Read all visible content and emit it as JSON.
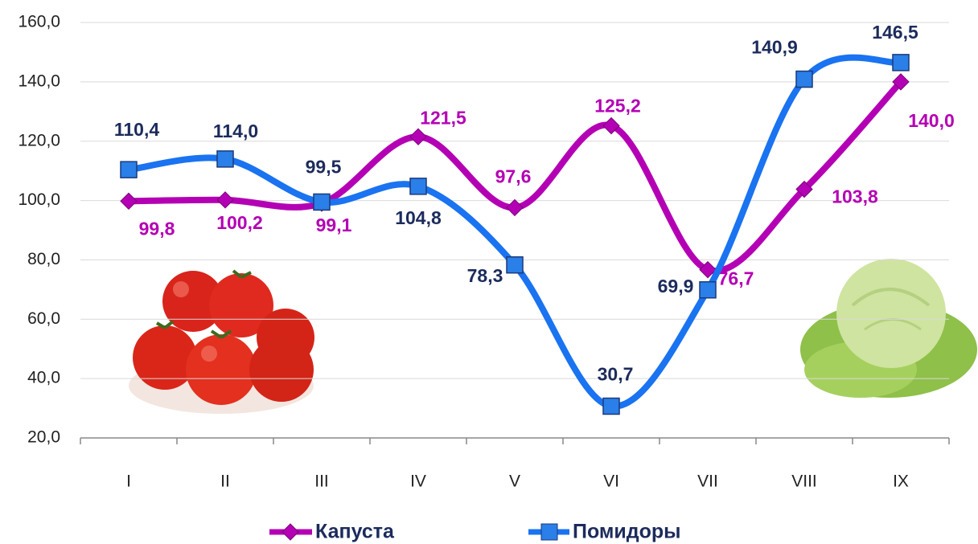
{
  "chart_data": {
    "type": "line",
    "categories": [
      "I",
      "II",
      "III",
      "IV",
      "V",
      "VI",
      "VII",
      "VIII",
      "IX"
    ],
    "series": [
      {
        "name": "Капуста",
        "color": "#b400b4",
        "values": [
          99.8,
          100.2,
          99.1,
          121.5,
          97.6,
          125.2,
          76.7,
          103.8,
          140.0
        ],
        "value_labels": [
          "99,8",
          "100,2",
          "99,1",
          "121,5",
          "97,6",
          "125,2",
          "76,7",
          "103,8",
          "140,0"
        ]
      },
      {
        "name": "Помидоры",
        "color": "#1a73f0",
        "values": [
          110.4,
          114.0,
          99.5,
          104.8,
          78.3,
          30.7,
          69.9,
          140.9,
          146.5
        ],
        "value_labels": [
          "110,4",
          "114,0",
          "99,5",
          "104,8",
          "78,3",
          "30,7",
          "69,9",
          "140,9",
          "146,5"
        ]
      }
    ],
    "ylim": [
      20,
      160
    ],
    "yticks": [
      {
        "value": 20,
        "label": "20,0"
      },
      {
        "value": 40,
        "label": "40,0"
      },
      {
        "value": 60,
        "label": "60,0"
      },
      {
        "value": 80,
        "label": "80,0"
      },
      {
        "value": 100,
        "label": "100,0"
      },
      {
        "value": 120,
        "label": "120,0"
      },
      {
        "value": 140,
        "label": "140,0"
      },
      {
        "value": 160,
        "label": "160,0"
      }
    ],
    "grid": true,
    "legend": "bottom"
  }
}
